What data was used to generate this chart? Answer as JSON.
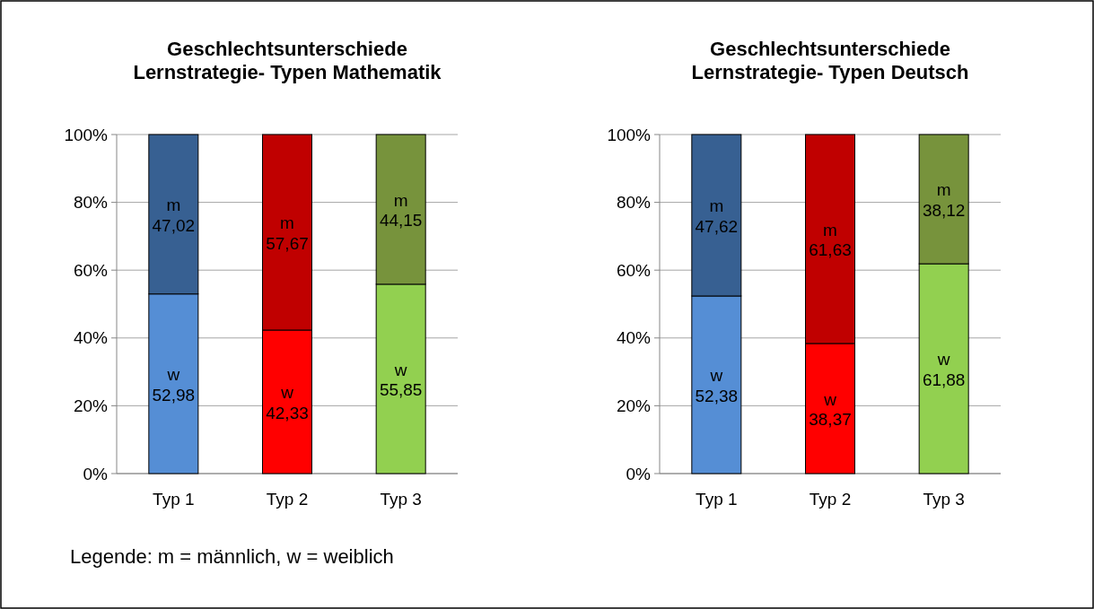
{
  "chart_data": [
    {
      "type": "bar",
      "title": "Geschlechtsunterschiede\nLernstrategie- Typen Mathematik",
      "categories": [
        "Typ 1",
        "Typ 2",
        "Typ 3"
      ],
      "stacked": true,
      "ylim": [
        0,
        100
      ],
      "yticks": [
        {
          "value": 0,
          "label": "0%"
        },
        {
          "value": 20,
          "label": "20%"
        },
        {
          "value": 40,
          "label": "40%"
        },
        {
          "value": 60,
          "label": "60%"
        },
        {
          "value": 80,
          "label": "80%"
        },
        {
          "value": 100,
          "label": "100%"
        }
      ],
      "grid": "y",
      "annotations": [
        "Legende: m = männlich, w = weiblich"
      ],
      "series": [
        {
          "name": "w",
          "colors": [
            "#558ed5",
            "#ff0000",
            "#92d050"
          ],
          "values": [
            52.98,
            42.33,
            55.85
          ],
          "value_labels": [
            "52,98",
            "42,33",
            "55,85"
          ]
        },
        {
          "name": "m",
          "colors": [
            "#376092",
            "#c00000",
            "#77933c"
          ],
          "values": [
            47.02,
            57.67,
            44.15
          ],
          "value_labels": [
            "47,02",
            "57,67",
            "44,15"
          ]
        }
      ]
    },
    {
      "type": "bar",
      "title": "Geschlechtsunterschiede\nLernstrategie- Typen Deutsch",
      "categories": [
        "Typ 1",
        "Typ 2",
        "Typ 3"
      ],
      "stacked": true,
      "ylim": [
        0,
        100
      ],
      "yticks": [
        {
          "value": 0,
          "label": "0%"
        },
        {
          "value": 20,
          "label": "20%"
        },
        {
          "value": 40,
          "label": "40%"
        },
        {
          "value": 60,
          "label": "60%"
        },
        {
          "value": 80,
          "label": "80%"
        },
        {
          "value": 100,
          "label": "100%"
        }
      ],
      "grid": "y",
      "series": [
        {
          "name": "w",
          "colors": [
            "#558ed5",
            "#ff0000",
            "#92d050"
          ],
          "values": [
            52.38,
            38.37,
            61.88
          ],
          "value_labels": [
            "52,38",
            "38,37",
            "61,88"
          ]
        },
        {
          "name": "m",
          "colors": [
            "#376092",
            "#c00000",
            "#77933c"
          ],
          "values": [
            47.62,
            61.63,
            38.12
          ],
          "value_labels": [
            "47,62",
            "61,63",
            "38,12"
          ]
        }
      ]
    }
  ]
}
